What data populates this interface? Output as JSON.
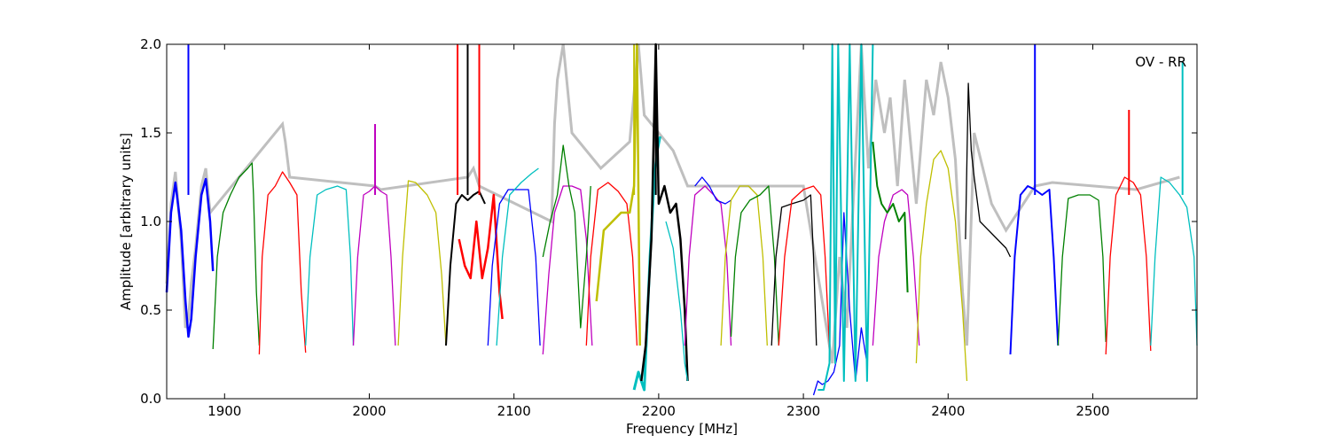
{
  "chart_data": {
    "type": "line",
    "annotation": "OV - RR",
    "xlabel": "Frequency [MHz]",
    "ylabel": "Amplitude [arbitrary units]",
    "xlim": [
      1860,
      2572
    ],
    "ylim": [
      0,
      2.0
    ],
    "xticks": [
      1900,
      2000,
      2100,
      2200,
      2300,
      2400,
      2500
    ],
    "xtick_labels": [
      "1900",
      "2000",
      "2100",
      "2200",
      "2300",
      "2400",
      "2500"
    ],
    "yticks": [
      0.0,
      0.5,
      1.0,
      1.5,
      2.0
    ],
    "ytick_labels": [
      "0.0",
      "0.5",
      "1.0",
      "1.5",
      "2.0"
    ],
    "grid": false,
    "colors": {
      "background_series": "#bfbfbf",
      "palette": [
        "#0000ff",
        "#008000",
        "#ff0000",
        "#00bfbf",
        "#bf00bf",
        "#bfbf00",
        "#000000"
      ]
    },
    "series": [
      {
        "color": "#0000ff",
        "width": 2.5,
        "x": [
          1860,
          1863,
          1866,
          1870,
          1873,
          1875,
          1877,
          1880,
          1884,
          1887,
          1890,
          1892
        ],
        "y": [
          0.6,
          1.05,
          1.22,
          0.95,
          0.55,
          0.35,
          0.45,
          0.8,
          1.15,
          1.24,
          1.0,
          0.72
        ]
      },
      {
        "color": "#008000",
        "width": 1.3,
        "x": [
          1892,
          1895,
          1899,
          1904,
          1910,
          1916,
          1919,
          1920,
          1922,
          1924
        ],
        "y": [
          0.28,
          0.8,
          1.05,
          1.15,
          1.25,
          1.3,
          1.33,
          1.15,
          0.6,
          0.3
        ]
      },
      {
        "color": "#ff0000",
        "width": 1.3,
        "x": [
          1924,
          1926,
          1930,
          1935,
          1940,
          1945,
          1950,
          1953,
          1956
        ],
        "y": [
          0.25,
          0.8,
          1.15,
          1.2,
          1.28,
          1.22,
          1.15,
          0.6,
          0.26
        ]
      },
      {
        "color": "#00bfbf",
        "width": 1.3,
        "x": [
          1956,
          1959,
          1964,
          1970,
          1978,
          1984,
          1987,
          1989
        ],
        "y": [
          0.3,
          0.8,
          1.15,
          1.18,
          1.2,
          1.18,
          0.8,
          0.3
        ]
      },
      {
        "color": "#bf00bf",
        "width": 1.3,
        "x": [
          1989,
          1992,
          1996,
          2000,
          2004,
          2008,
          2012,
          2015,
          2018
        ],
        "y": [
          0.3,
          0.8,
          1.15,
          1.17,
          1.2,
          1.17,
          1.15,
          0.8,
          0.3
        ]
      },
      {
        "color": "#bfbf00",
        "width": 1.3,
        "x": [
          2020,
          2023,
          2027,
          2032,
          2040,
          2046,
          2050,
          2053
        ],
        "y": [
          0.3,
          0.8,
          1.23,
          1.22,
          1.15,
          1.05,
          0.7,
          0.3
        ]
      },
      {
        "color": "#000000",
        "width": 2.0,
        "x": [
          2053,
          2056,
          2060,
          2064,
          2068,
          2072,
          2076,
          2080
        ],
        "y": [
          0.3,
          0.75,
          1.1,
          1.15,
          1.12,
          1.15,
          1.17,
          1.1
        ]
      },
      {
        "color": "#ff0000",
        "width": 2.5,
        "x": [
          2062,
          2066,
          2070,
          2074,
          2078,
          2082,
          2086,
          2090,
          2092
        ],
        "y": [
          0.9,
          0.75,
          0.68,
          1.0,
          0.68,
          0.85,
          1.15,
          0.6,
          0.45
        ]
      },
      {
        "color": "#0000ff",
        "width": 1.3,
        "x": [
          2082,
          2085,
          2090,
          2096,
          2103,
          2110,
          2115,
          2118
        ],
        "y": [
          0.3,
          0.75,
          1.1,
          1.18,
          1.18,
          1.18,
          0.8,
          0.3
        ]
      },
      {
        "color": "#00bfbf",
        "width": 1.3,
        "x": [
          2088,
          2092,
          2097,
          2105,
          2112,
          2117
        ],
        "y": [
          0.3,
          0.8,
          1.15,
          1.22,
          1.27,
          1.3
        ]
      },
      {
        "color": "#bf00bf",
        "width": 1.3,
        "x": [
          2120,
          2124,
          2128,
          2134,
          2140,
          2146,
          2150,
          2154
        ],
        "y": [
          0.25,
          0.7,
          1.05,
          1.2,
          1.2,
          1.18,
          0.9,
          0.3
        ]
      },
      {
        "color": "#008000",
        "width": 1.3,
        "x": [
          2120,
          2125,
          2130,
          2134,
          2138,
          2142,
          2146,
          2150,
          2153
        ],
        "y": [
          0.8,
          1.0,
          1.15,
          1.43,
          1.2,
          1.05,
          0.4,
          0.8,
          1.2
        ]
      },
      {
        "color": "#ff0000",
        "width": 1.3,
        "x": [
          2150,
          2153,
          2158,
          2165,
          2172,
          2178,
          2182,
          2185
        ],
        "y": [
          0.3,
          0.8,
          1.18,
          1.22,
          1.17,
          1.1,
          0.8,
          0.3
        ]
      },
      {
        "color": "#bfbf00",
        "width": 2.5,
        "x": [
          2157,
          2162,
          2168,
          2174,
          2180,
          2183,
          2185,
          2187
        ],
        "y": [
          0.55,
          0.95,
          1.0,
          1.05,
          1.05,
          1.2,
          2.0,
          0.3
        ]
      },
      {
        "color": "#00bfbf",
        "width": 3.0,
        "x": [
          2183,
          2186,
          2190,
          2194,
          2197,
          2199,
          2201
        ],
        "y": [
          0.05,
          0.15,
          0.05,
          0.8,
          1.25,
          1.4,
          1.48
        ]
      },
      {
        "color": "#000000",
        "width": 2.5,
        "x": [
          2188,
          2191,
          2195,
          2198,
          2200,
          2204,
          2208,
          2212,
          2215,
          2218,
          2220
        ],
        "y": [
          0.1,
          0.3,
          0.9,
          2.0,
          1.1,
          1.2,
          1.05,
          1.1,
          0.9,
          0.5,
          0.1
        ]
      },
      {
        "color": "#00bfbf",
        "width": 1.3,
        "x": [
          2205,
          2210,
          2215,
          2218,
          2220
        ],
        "y": [
          1.0,
          0.85,
          0.5,
          0.2,
          0.1
        ]
      },
      {
        "color": "#bf00bf",
        "width": 1.3,
        "x": [
          2218,
          2221,
          2225,
          2232,
          2238,
          2243,
          2247,
          2250
        ],
        "y": [
          0.3,
          0.8,
          1.15,
          1.2,
          1.15,
          1.1,
          0.8,
          0.3
        ]
      },
      {
        "color": "#0000ff",
        "width": 1.3,
        "x": [
          2225,
          2230,
          2235,
          2240,
          2246,
          2250
        ],
        "y": [
          1.2,
          1.25,
          1.2,
          1.12,
          1.1,
          1.12
        ]
      },
      {
        "color": "#bfbf00",
        "width": 1.3,
        "x": [
          2243,
          2246,
          2250,
          2256,
          2262,
          2268,
          2272,
          2275
        ],
        "y": [
          0.3,
          0.8,
          1.12,
          1.2,
          1.2,
          1.15,
          0.8,
          0.3
        ]
      },
      {
        "color": "#008000",
        "width": 1.3,
        "x": [
          2250,
          2253,
          2257,
          2263,
          2270,
          2276,
          2280,
          2283
        ],
        "y": [
          0.35,
          0.8,
          1.05,
          1.12,
          1.15,
          1.2,
          0.8,
          0.3
        ]
      },
      {
        "color": "#000000",
        "width": 1.3,
        "x": [
          2278,
          2281,
          2285,
          2292,
          2300,
          2305,
          2307,
          2309
        ],
        "y": [
          0.3,
          0.8,
          1.08,
          1.1,
          1.12,
          1.15,
          0.8,
          0.3
        ]
      },
      {
        "color": "#ff0000",
        "width": 1.3,
        "x": [
          2283,
          2287,
          2292,
          2300,
          2307,
          2312,
          2315,
          2318
        ],
        "y": [
          0.3,
          0.8,
          1.12,
          1.18,
          1.2,
          1.15,
          0.8,
          0.28
        ]
      },
      {
        "color": "#0000ff",
        "width": 1.3,
        "x": [
          2307,
          2310,
          2313,
          2317,
          2321,
          2325,
          2328,
          2332,
          2336,
          2340,
          2344
        ],
        "y": [
          0.02,
          0.1,
          0.08,
          0.1,
          0.15,
          0.3,
          1.05,
          0.5,
          0.1,
          0.4,
          0.2
        ]
      },
      {
        "color": "#00bfbf",
        "width": 2.0,
        "x": [
          2310,
          2314,
          2318,
          2320,
          2322,
          2324,
          2328,
          2332,
          2336,
          2340,
          2344,
          2348
        ],
        "y": [
          0.05,
          0.05,
          0.2,
          2.0,
          0.2,
          2.0,
          0.1,
          2.0,
          0.1,
          2.0,
          0.1,
          2.0
        ]
      },
      {
        "color": "#bf00bf",
        "width": 1.3,
        "x": [
          2348,
          2352,
          2356,
          2362,
          2368,
          2372,
          2376,
          2380
        ],
        "y": [
          0.3,
          0.8,
          1.0,
          1.15,
          1.18,
          1.15,
          0.8,
          0.3
        ]
      },
      {
        "color": "#008000",
        "width": 2.0,
        "x": [
          2348,
          2351,
          2354,
          2358,
          2362,
          2366,
          2370,
          2372
        ],
        "y": [
          1.45,
          1.2,
          1.1,
          1.05,
          1.1,
          1.0,
          1.05,
          0.6
        ]
      },
      {
        "color": "#bfbf00",
        "width": 1.3,
        "x": [
          2378,
          2381,
          2385,
          2390,
          2395,
          2400,
          2405,
          2410,
          2413
        ],
        "y": [
          0.2,
          0.8,
          1.1,
          1.35,
          1.4,
          1.3,
          1.0,
          0.5,
          0.1
        ]
      },
      {
        "color": "#000000",
        "width": 1.3,
        "x": [
          2412,
          2414,
          2416,
          2418,
          2422,
          2428,
          2434,
          2440,
          2443
        ],
        "y": [
          0.9,
          1.78,
          1.4,
          1.25,
          1.0,
          0.95,
          0.9,
          0.85,
          0.8
        ]
      },
      {
        "color": "#0000ff",
        "width": 2.0,
        "x": [
          2443,
          2446,
          2450,
          2455,
          2460,
          2465,
          2470,
          2473,
          2476
        ],
        "y": [
          0.25,
          0.8,
          1.15,
          1.2,
          1.18,
          1.15,
          1.18,
          0.8,
          0.3
        ]
      },
      {
        "color": "#008000",
        "width": 1.3,
        "x": [
          2476,
          2479,
          2483,
          2490,
          2498,
          2504,
          2507,
          2509
        ],
        "y": [
          0.3,
          0.8,
          1.13,
          1.15,
          1.15,
          1.12,
          0.8,
          0.32
        ]
      },
      {
        "color": "#ff0000",
        "width": 1.3,
        "x": [
          2509,
          2512,
          2516,
          2522,
          2528,
          2533,
          2537,
          2540
        ],
        "y": [
          0.25,
          0.8,
          1.15,
          1.25,
          1.22,
          1.15,
          0.8,
          0.27
        ]
      },
      {
        "color": "#00bfbf",
        "width": 1.3,
        "x": [
          2540,
          2543,
          2547,
          2553,
          2560,
          2565,
          2570,
          2572
        ],
        "y": [
          0.3,
          0.8,
          1.25,
          1.22,
          1.15,
          1.08,
          0.8,
          0.3
        ]
      }
    ],
    "background": {
      "color": "#bfbf00",
      "x": [
        1860,
        1863,
        1866,
        1870,
        1873,
        1875,
        1877,
        1880,
        1884,
        1887,
        1890,
        1920,
        1940,
        1942,
        1945,
        2004,
        2008,
        2068,
        2072,
        2076,
        2126,
        2128,
        2130,
        2134,
        2140,
        2160,
        2180,
        2186,
        2190,
        2200,
        2210,
        2220,
        2300,
        2320,
        2325,
        2330,
        2340,
        2345,
        2350,
        2356,
        2360,
        2365,
        2370,
        2378,
        2385,
        2390,
        2395,
        2400,
        2405,
        2410,
        2413,
        2418,
        2430,
        2440,
        2460,
        2472,
        2530,
        2560
      ],
      "y": [
        0.65,
        1.1,
        1.28,
        0.9,
        0.4,
        0.45,
        0.65,
        0.85,
        1.2,
        1.3,
        1.05,
        1.35,
        1.55,
        1.45,
        1.25,
        1.2,
        1.18,
        1.25,
        1.3,
        1.2,
        1.0,
        1.55,
        1.8,
        2.0,
        1.5,
        1.3,
        1.45,
        2.0,
        1.6,
        1.5,
        1.4,
        1.2,
        1.2,
        0.2,
        0.8,
        0.4,
        2.0,
        1.3,
        1.8,
        1.5,
        1.7,
        1.2,
        1.8,
        1.1,
        1.8,
        1.6,
        1.9,
        1.7,
        1.35,
        0.6,
        0.3,
        1.5,
        1.1,
        0.95,
        1.2,
        1.22,
        1.18,
        1.25
      ]
    },
    "spikes": [
      {
        "color": "#0000ff",
        "x": 1875,
        "y": 2.0
      },
      {
        "color": "#ff0000",
        "x": 2061,
        "y": 2.0
      },
      {
        "color": "#000000",
        "x": 2068,
        "y": 2.0
      },
      {
        "color": "#ff0000",
        "x": 2076,
        "y": 2.0
      },
      {
        "color": "#bf00bf",
        "x": 2004,
        "y": 1.55
      },
      {
        "color": "#bfbf00",
        "x": 2183,
        "y": 2.0
      },
      {
        "color": "#000000",
        "x": 2198,
        "y": 2.0
      },
      {
        "color": "#0000ff",
        "x": 2460,
        "y": 2.0
      },
      {
        "color": "#ff0000",
        "x": 2525,
        "y": 1.63
      },
      {
        "color": "#00bfbf",
        "x": 2562,
        "y": 1.9
      }
    ]
  }
}
